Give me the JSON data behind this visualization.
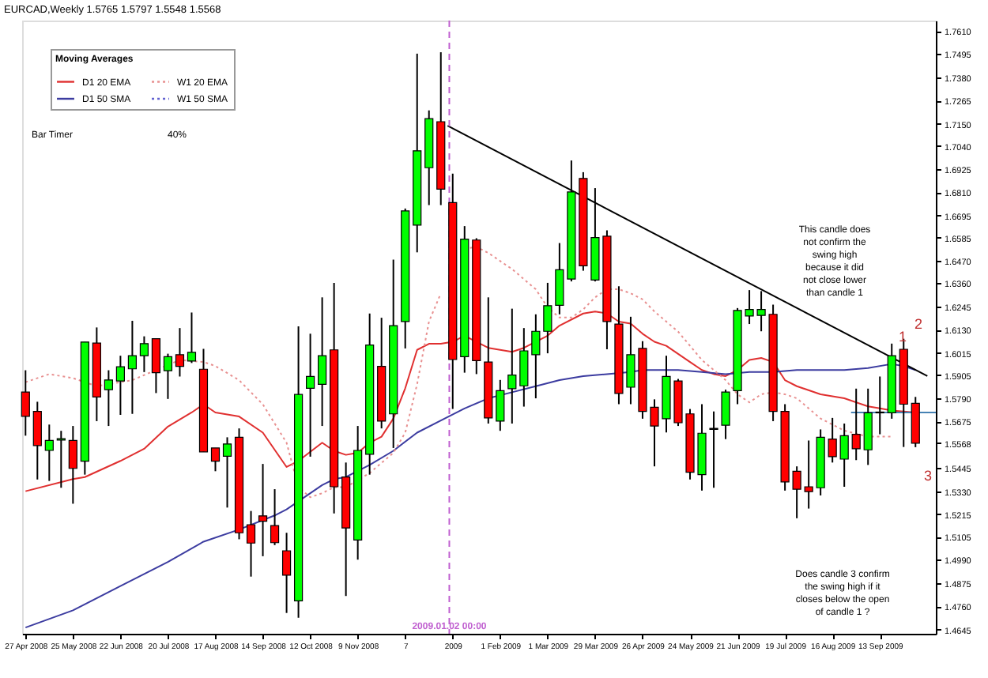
{
  "chart_data": {
    "type": "candlestick",
    "title": "EURCAD,Weekly  1.5765 1.5797 1.5548 1.5568",
    "legend_title": "Moving Averages",
    "legend": "top left",
    "x": [
      "2008-04-27",
      "2008-05-04",
      "2008-05-11",
      "2008-05-18",
      "2008-05-25",
      "2008-06-01",
      "2008-06-08",
      "2008-06-15",
      "2008-06-22",
      "2008-06-29",
      "2008-07-06",
      "2008-07-13",
      "2008-07-20",
      "2008-07-27",
      "2008-08-03",
      "2008-08-10",
      "2008-08-17",
      "2008-08-24",
      "2008-08-31",
      "2008-09-07",
      "2008-09-14",
      "2008-09-21",
      "2008-09-28",
      "2008-10-05",
      "2008-10-12",
      "2008-10-19",
      "2008-10-26",
      "2008-11-02",
      "2008-11-09",
      "2008-11-16",
      "2008-11-23",
      "2008-11-30",
      "2008-12-07",
      "2008-12-14",
      "2008-12-21",
      "2008-12-28",
      "2009-01-04",
      "2009-01-11",
      "2009-01-18",
      "2009-01-25",
      "2009-02-01",
      "2009-02-08",
      "2009-02-15",
      "2009-02-22",
      "2009-03-01",
      "2009-03-08",
      "2009-03-15",
      "2009-03-22",
      "2009-03-29",
      "2009-04-05",
      "2009-04-12",
      "2009-04-19",
      "2009-04-26",
      "2009-05-03",
      "2009-05-10",
      "2009-05-17",
      "2009-05-24",
      "2009-05-31",
      "2009-06-07",
      "2009-06-14",
      "2009-06-21",
      "2009-06-28",
      "2009-07-05",
      "2009-07-12",
      "2009-07-19",
      "2009-07-26",
      "2009-08-02",
      "2009-08-09",
      "2009-08-16",
      "2009-08-23",
      "2009-08-30",
      "2009-09-06",
      "2009-09-13",
      "2009-09-20",
      "2009-09-27",
      "2009-10-04"
    ],
    "ohlc": [
      [
        1.5821,
        1.5929,
        1.5605,
        1.5701
      ],
      [
        1.5725,
        1.5773,
        1.5388,
        1.5556
      ],
      [
        1.5532,
        1.566,
        1.5381,
        1.5581
      ],
      [
        1.5583,
        1.5629,
        1.5347,
        1.559
      ],
      [
        1.5581,
        1.5653,
        1.5268,
        1.5443
      ],
      [
        1.5479,
        1.6069,
        1.5412,
        1.6069
      ],
      [
        1.6064,
        1.6141,
        1.5677,
        1.5797
      ],
      [
        1.5833,
        1.5929,
        1.5653,
        1.5881
      ],
      [
        1.5876,
        1.6001,
        1.5708,
        1.5946
      ],
      [
        1.5936,
        1.6174,
        1.5713,
        1.6001
      ],
      [
        1.6001,
        1.6097,
        1.592,
        1.6061
      ],
      [
        1.6085,
        1.6085,
        1.5816,
        1.5917
      ],
      [
        1.5927,
        1.6011,
        1.5787,
        1.5996
      ],
      [
        1.6006,
        1.6138,
        1.5898,
        1.5948
      ],
      [
        1.5975,
        1.6215,
        1.5965,
        1.6018
      ],
      [
        1.5934,
        1.6035,
        1.5525,
        1.5525
      ],
      [
        1.5544,
        1.5544,
        1.5429,
        1.5479
      ],
      [
        1.5503,
        1.5597,
        1.5249,
        1.5564
      ],
      [
        1.5597,
        1.5641,
        1.5092,
        1.5124
      ],
      [
        1.5164,
        1.5232,
        1.4907,
        1.5073
      ],
      [
        1.5208,
        1.5465,
        1.5008,
        1.5181
      ],
      [
        1.516,
        1.534,
        1.5063,
        1.5075
      ],
      [
        1.5035,
        1.5124,
        1.4727,
        1.4914
      ],
      [
        1.4787,
        1.6146,
        1.4703,
        1.5809
      ],
      [
        1.584,
        1.611,
        1.5501,
        1.5898
      ],
      [
        1.5859,
        1.629,
        1.5653,
        1.6001
      ],
      [
        1.603,
        1.6362,
        1.522,
        1.5352
      ],
      [
        1.54,
        1.5472,
        1.4811,
        1.5148
      ],
      [
        1.5088,
        1.5653,
        1.4991,
        1.5532
      ],
      [
        1.5513,
        1.621,
        1.5412,
        1.6054
      ],
      [
        1.5948,
        1.6189,
        1.5641,
        1.5677
      ],
      [
        1.5713,
        1.6477,
        1.5544,
        1.615
      ],
      [
        1.617,
        1.673,
        1.6037,
        1.6718
      ],
      [
        1.6648,
        1.7497,
        1.6513,
        1.7016
      ],
      [
        1.6932,
        1.7216,
        1.6747,
        1.7175
      ],
      [
        1.716,
        1.7504,
        1.6747,
        1.6826
      ],
      [
        1.6759,
        1.6903,
        1.5737,
        1.5982
      ],
      [
        1.5996,
        1.6643,
        1.5917,
        1.6578
      ],
      [
        1.6574,
        1.6583,
        1.591,
        1.5977
      ],
      [
        1.597,
        1.629,
        1.5665,
        1.5693
      ],
      [
        1.5677,
        1.5881,
        1.5629,
        1.5828
      ],
      [
        1.5838,
        1.6234,
        1.5665,
        1.5905
      ],
      [
        1.5852,
        1.6138,
        1.5749,
        1.6025
      ],
      [
        1.6006,
        1.6206,
        1.579,
        1.6122
      ],
      [
        1.6122,
        1.6362,
        1.6013,
        1.6249
      ],
      [
        1.6251,
        1.6559,
        1.6206,
        1.6427
      ],
      [
        1.6381,
        1.6968,
        1.6369,
        1.6812
      ],
      [
        1.6879,
        1.691,
        1.6422,
        1.6446
      ],
      [
        1.6376,
        1.6831,
        1.6369,
        1.6586
      ],
      [
        1.6593,
        1.6622,
        1.6033,
        1.617
      ],
      [
        1.6158,
        1.6345,
        1.5761,
        1.5814
      ],
      [
        1.5845,
        1.6194,
        1.5761,
        1.6006
      ],
      [
        1.6037,
        1.6073,
        1.5689,
        1.5725
      ],
      [
        1.5746,
        1.5785,
        1.5453,
        1.5653
      ],
      [
        1.5689,
        1.6001,
        1.5621,
        1.5898
      ],
      [
        1.5876,
        1.5886,
        1.5653,
        1.5669
      ],
      [
        1.5713,
        1.5737,
        1.5388,
        1.5424
      ],
      [
        1.5412,
        1.5761,
        1.5333,
        1.5617
      ],
      [
        1.5636,
        1.5725,
        1.5347,
        1.5641
      ],
      [
        1.5657,
        1.5833,
        1.5588,
        1.5821
      ],
      [
        1.5828,
        1.6237,
        1.5761,
        1.6225
      ],
      [
        1.6198,
        1.6326,
        1.6158,
        1.623
      ],
      [
        1.6201,
        1.6321,
        1.6122,
        1.623
      ],
      [
        1.6206,
        1.6254,
        1.5677,
        1.5725
      ],
      [
        1.5725,
        1.5761,
        1.5333,
        1.5376
      ],
      [
        1.5429,
        1.5453,
        1.5196,
        1.534
      ],
      [
        1.5352,
        1.5581,
        1.5244,
        1.5328
      ],
      [
        1.5347,
        1.5636,
        1.5309,
        1.5597
      ],
      [
        1.5588,
        1.5693,
        1.5472,
        1.5501
      ],
      [
        1.5489,
        1.5665,
        1.5352,
        1.5605
      ],
      [
        1.5612,
        1.5838,
        1.5484,
        1.554
      ],
      [
        1.5535,
        1.5838,
        1.546,
        1.5718
      ],
      [
        1.5718,
        1.5898,
        1.5612,
        1.5722
      ],
      [
        1.5718,
        1.6061,
        1.5689,
        1.6001
      ],
      [
        1.6033,
        1.6085,
        1.5549,
        1.5761
      ],
      [
        1.5765,
        1.5797,
        1.5548,
        1.5568
      ]
    ],
    "colors": [
      "#ff0000",
      "#ff0000",
      "#00ff00",
      "#00ff00",
      "#ff0000",
      "#00ff00",
      "#ff0000",
      "#00ff00",
      "#00ff00",
      "#00ff00",
      "#00ff00",
      "#ff0000",
      "#00ff00",
      "#ff0000",
      "#00ff00",
      "#ff0000",
      "#ff0000",
      "#00ff00",
      "#ff0000",
      "#ff0000",
      "#ff0000",
      "#ff0000",
      "#ff0000",
      "#00ff00",
      "#00ff00",
      "#00ff00",
      "#ff0000",
      "#ff0000",
      "#00ff00",
      "#00ff00",
      "#ff0000",
      "#00ff00",
      "#00ff00",
      "#00ff00",
      "#00ff00",
      "#ff0000",
      "#ff0000",
      "#00ff00",
      "#ff0000",
      "#ff0000",
      "#00ff00",
      "#00ff00",
      "#00ff00",
      "#00ff00",
      "#00ff00",
      "#00ff00",
      "#00ff00",
      "#ff0000",
      "#00ff00",
      "#ff0000",
      "#ff0000",
      "#00ff00",
      "#ff0000",
      "#ff0000",
      "#00ff00",
      "#ff0000",
      "#ff0000",
      "#00ff00",
      "#00ff00",
      "#00ff00",
      "#00ff00",
      "#00ff00",
      "#00ff00",
      "#ff0000",
      "#ff0000",
      "#ff0000",
      "#ff0000",
      "#00ff00",
      "#ff0000",
      "#00ff00",
      "#ff0000",
      "#00ff00",
      "#00ff00",
      "#00ff00",
      "#ff0000",
      "#ff0000"
    ],
    "series": [
      {
        "name": "D1 20 EMA",
        "type": "line",
        "color": "#e03030",
        "line_style": "solid",
        "x": [
          "2008-04-27",
          "2008-05-25",
          "2008-06-01",
          "2008-06-22",
          "2008-07-06",
          "2008-07-20",
          "2008-08-03",
          "2008-08-10",
          "2008-08-17",
          "2008-08-31",
          "2008-09-14",
          "2008-09-28",
          "2008-10-05",
          "2008-10-19",
          "2008-10-26",
          "2008-11-02",
          "2008-11-09",
          "2008-11-16",
          "2008-11-23",
          "2008-11-30",
          "2008-12-07",
          "2008-12-14",
          "2008-12-21",
          "2008-12-28",
          "2009-01-04",
          "2009-01-11",
          "2009-01-18",
          "2009-01-25",
          "2009-02-01",
          "2009-02-08",
          "2009-02-15",
          "2009-03-01",
          "2009-03-08",
          "2009-03-22",
          "2009-03-29",
          "2009-04-05",
          "2009-04-12",
          "2009-04-19",
          "2009-04-26",
          "2009-05-03",
          "2009-05-10",
          "2009-05-24",
          "2009-05-31",
          "2009-06-07",
          "2009-06-14",
          "2009-06-21",
          "2009-06-28",
          "2009-07-05",
          "2009-07-12",
          "2009-07-19",
          "2009-07-26",
          "2009-08-09",
          "2009-08-23",
          "2009-09-06",
          "2009-09-13",
          "2009-09-20",
          "2009-10-04"
        ],
        "values": [
          1.533,
          1.539,
          1.54,
          1.548,
          1.554,
          1.565,
          1.572,
          1.576,
          1.572,
          1.57,
          1.562,
          1.545,
          1.548,
          1.557,
          1.553,
          1.551,
          1.552,
          1.557,
          1.56,
          1.569,
          1.584,
          1.603,
          1.606,
          1.606,
          1.607,
          1.61,
          1.607,
          1.604,
          1.603,
          1.602,
          1.604,
          1.61,
          1.615,
          1.621,
          1.622,
          1.621,
          1.617,
          1.616,
          1.611,
          1.607,
          1.605,
          1.597,
          1.593,
          1.591,
          1.59,
          1.593,
          1.598,
          1.599,
          1.597,
          1.588,
          1.585,
          1.581,
          1.579,
          1.575,
          1.574,
          1.573,
          1.572
        ]
      },
      {
        "name": "D1 50 SMA",
        "type": "line",
        "color": "#3c3ca0",
        "line_style": "solid",
        "x": [
          "2008-04-27",
          "2008-05-25",
          "2008-06-22",
          "2008-07-20",
          "2008-08-10",
          "2008-08-31",
          "2008-09-21",
          "2008-09-28",
          "2008-10-12",
          "2008-10-19",
          "2008-10-26",
          "2008-11-02",
          "2008-11-16",
          "2008-11-30",
          "2008-12-14",
          "2008-12-28",
          "2009-01-11",
          "2009-01-25",
          "2009-02-08",
          "2009-02-22",
          "2009-03-08",
          "2009-03-22",
          "2009-04-05",
          "2009-04-19",
          "2009-04-26",
          "2009-05-03",
          "2009-05-17",
          "2009-05-31",
          "2009-06-14",
          "2009-06-28",
          "2009-07-12",
          "2009-07-26",
          "2009-08-09",
          "2009-08-23",
          "2009-09-06",
          "2009-09-20",
          "2009-09-27",
          "2009-10-04"
        ],
        "values": [
          1.4655,
          1.474,
          1.486,
          1.498,
          1.508,
          1.514,
          1.521,
          1.524,
          1.532,
          1.536,
          1.539,
          1.54,
          1.546,
          1.553,
          1.562,
          1.568,
          1.574,
          1.579,
          1.582,
          1.585,
          1.588,
          1.59,
          1.591,
          1.592,
          1.593,
          1.593,
          1.593,
          1.592,
          1.591,
          1.592,
          1.592,
          1.593,
          1.593,
          1.593,
          1.594,
          1.596,
          1.595,
          1.593
        ]
      },
      {
        "name": "W1 20 EMA",
        "type": "line",
        "color": "#e89090",
        "line_style": "dotted",
        "x": [
          "2008-04-27",
          "2008-05-11",
          "2008-05-25",
          "2008-06-08",
          "2008-06-22",
          "2008-06-29",
          "2008-07-13",
          "2008-07-27",
          "2008-08-10",
          "2008-08-17",
          "2008-08-31",
          "2008-09-14",
          "2008-09-28",
          "2008-10-05",
          "2008-10-12",
          "2008-10-19",
          "2008-10-26",
          "2008-11-02",
          "2008-11-16",
          "2008-11-30",
          "2008-12-07",
          "2008-12-14",
          "2008-12-21",
          "2008-12-28",
          "2009-01-04",
          "2009-01-11",
          "2009-01-18",
          "2009-01-25",
          "2009-02-08",
          "2009-02-22",
          "2009-03-01",
          "2009-03-08",
          "2009-03-15",
          "2009-03-22",
          "2009-03-29",
          "2009-04-05",
          "2009-04-12",
          "2009-04-19",
          "2009-04-26",
          "2009-05-03",
          "2009-05-17",
          "2009-05-31",
          "2009-06-14",
          "2009-06-21",
          "2009-06-28",
          "2009-07-05",
          "2009-07-12",
          "2009-07-19",
          "2009-07-26",
          "2009-08-09",
          "2009-08-23",
          "2009-09-06",
          "2009-09-20"
        ],
        "values": [
          1.587,
          1.591,
          1.589,
          1.585,
          1.587,
          1.588,
          1.593,
          1.598,
          1.597,
          1.595,
          1.588,
          1.576,
          1.557,
          1.535,
          1.53,
          1.532,
          1.535,
          1.535,
          1.542,
          1.552,
          1.562,
          1.586,
          1.617,
          1.631,
          null,
          1.653,
          1.654,
          1.651,
          1.643,
          1.633,
          1.624,
          1.619,
          1.619,
          1.623,
          1.629,
          1.633,
          1.633,
          1.631,
          1.628,
          1.622,
          1.612,
          1.598,
          1.588,
          1.581,
          1.577,
          1.581,
          1.582,
          1.581,
          1.579,
          1.569,
          1.563,
          1.56,
          1.56
        ]
      },
      {
        "name": "W1 50 SMA",
        "type": "line",
        "color": "#6060d0",
        "line_style": "dotted",
        "values": [
          null,
          null,
          null,
          null,
          null,
          null,
          null,
          null,
          null,
          null,
          null,
          null,
          null,
          null,
          null,
          null,
          null,
          null,
          null,
          null,
          null,
          null,
          null,
          null,
          null,
          null,
          null,
          null,
          null,
          null,
          null,
          null,
          null,
          null,
          null,
          null,
          null,
          null,
          null,
          null,
          null,
          null,
          null,
          null,
          null,
          null,
          null,
          null,
          null,
          null,
          null,
          null,
          null,
          null,
          null,
          null,
          null,
          null,
          null,
          null,
          null,
          null,
          null,
          null,
          null,
          null,
          null,
          null,
          null,
          null,
          null,
          null,
          null,
          null,
          null,
          null
        ]
      },
      {
        "type": "line",
        "color": "#000000",
        "line_style": "solid",
        "x": [
          "2009-01-01",
          "2009-10-11"
        ],
        "values": [
          1.714,
          1.59
        ]
      },
      {
        "type": "line",
        "color": "#4682b4",
        "line_style": "solid",
        "x": [
          "2009-08-27",
          "2009-10-16"
        ],
        "values": [
          1.572,
          1.572
        ]
      }
    ],
    "ref_lines": [
      {
        "axis": "x",
        "value": "2009-01-02",
        "label": "2009.01.02 00:00",
        "color": "#c060d0",
        "line_style": "dashed"
      }
    ],
    "annotations": [
      "This candle does not confirm the swing high because it did not close lower than candle 1",
      "Does candle 3 confirm the swing high if it closes below the open of candle 1 ?",
      "Bar Timer",
      "40%",
      "1",
      "2",
      "3"
    ],
    "xlim": [
      "2008-04-25",
      "2009-10-16"
    ],
    "xticks": [
      {
        "value": "2008-04-27",
        "label": "27 Apr 2008"
      },
      {
        "value": "2008-05-25",
        "label": "25 May 2008"
      },
      {
        "value": "2008-06-22",
        "label": "22 Jun 2008"
      },
      {
        "value": "2008-07-20",
        "label": "20 Jul 2008"
      },
      {
        "value": "2008-08-17",
        "label": "17 Aug 2008"
      },
      {
        "value": "2008-09-14",
        "label": "14 Sep 2008"
      },
      {
        "value": "2008-10-12",
        "label": "12 Oct 2008"
      },
      {
        "value": "2008-11-09",
        "label": "9 Nov 2008"
      },
      {
        "value": "2008-12-07",
        "label": "7"
      },
      {
        "value": "2009-01-04",
        "label": "2009"
      },
      {
        "value": "2009-02-01",
        "label": "1 Feb 2009"
      },
      {
        "value": "2009-03-01",
        "label": "1 Mar 2009"
      },
      {
        "value": "2009-03-29",
        "label": "29 Mar 2009"
      },
      {
        "value": "2009-04-26",
        "label": "26 Apr 2009"
      },
      {
        "value": "2009-05-24",
        "label": "24 May 2009"
      },
      {
        "value": "2009-06-21",
        "label": "21 Jun 2009"
      },
      {
        "value": "2009-07-19",
        "label": "19 Jul 2009"
      },
      {
        "value": "2009-08-16",
        "label": "16 Aug 2009"
      },
      {
        "value": "2009-09-13",
        "label": "13 Sep 2009"
      }
    ],
    "ylim": [
      1.4624,
      1.7661
    ],
    "yticks": [
      {
        "value": 1.761,
        "label": "1.7610"
      },
      {
        "value": 1.7495,
        "label": "1.7495"
      },
      {
        "value": 1.738,
        "label": "1.7380"
      },
      {
        "value": 1.7265,
        "label": "1.7265"
      },
      {
        "value": 1.715,
        "label": "1.7150"
      },
      {
        "value": 1.704,
        "label": "1.7040"
      },
      {
        "value": 1.6925,
        "label": "1.6925"
      },
      {
        "value": 1.681,
        "label": "1.6810"
      },
      {
        "value": 1.6695,
        "label": "1.6695"
      },
      {
        "value": 1.6585,
        "label": "1.6585"
      },
      {
        "value": 1.647,
        "label": "1.6470"
      },
      {
        "value": 1.636,
        "label": "1.6360"
      },
      {
        "value": 1.6245,
        "label": "1.6245"
      },
      {
        "value": 1.613,
        "label": "1.6130"
      },
      {
        "value": 1.6015,
        "label": "1.6015"
      },
      {
        "value": 1.5905,
        "label": "1.5905"
      },
      {
        "value": 1.579,
        "label": "1.5790"
      },
      {
        "value": 1.5675,
        "label": "1.5675"
      },
      {
        "value": 1.5568,
        "label": "1.5568"
      },
      {
        "value": 1.5445,
        "label": "1.5445"
      },
      {
        "value": 1.533,
        "label": "1.5330"
      },
      {
        "value": 1.5215,
        "label": "1.5215"
      },
      {
        "value": 1.5105,
        "label": "1.5105"
      },
      {
        "value": 1.499,
        "label": "1.4990"
      },
      {
        "value": 1.4875,
        "label": "1.4875"
      },
      {
        "value": 1.476,
        "label": "1.4760"
      },
      {
        "value": 1.4645,
        "label": "1.4645"
      }
    ]
  }
}
